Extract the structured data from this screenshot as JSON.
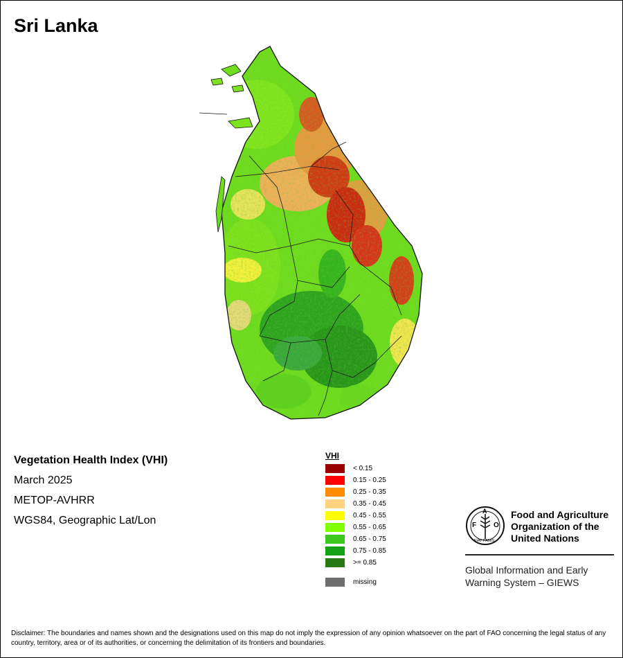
{
  "map": {
    "country": "Sri Lanka",
    "index_title": "Vegetation Health Index (VHI)",
    "period": "March 2025",
    "sensor": "METOP-AVHRR",
    "projection": "WGS84, Geographic Lat/Lon"
  },
  "legend": {
    "title": "VHI",
    "classes": [
      {
        "label": "< 0.15",
        "color": "#9b0000"
      },
      {
        "label": "0.15 - 0.25",
        "color": "#ff0000"
      },
      {
        "label": "0.25 - 0.35",
        "color": "#ff8c00"
      },
      {
        "label": "0.35 - 0.45",
        "color": "#ffd27f"
      },
      {
        "label": "0.45 - 0.55",
        "color": "#ffff00"
      },
      {
        "label": "0.55 - 0.65",
        "color": "#7fff00"
      },
      {
        "label": "0.65 - 0.75",
        "color": "#3cc81e"
      },
      {
        "label": "0.75 - 0.85",
        "color": "#14a014"
      },
      {
        "label": ">= 0.85",
        "color": "#287814"
      }
    ],
    "missing": {
      "label": "missing",
      "color": "#6e6e6e"
    }
  },
  "organization": {
    "name_line1": "Food and Agriculture",
    "name_line2": "Organization of the",
    "name_line3": "United Nations",
    "logo_text": "FAO",
    "motto": "FIAT PANIS",
    "system_line1": "Global Information and Early",
    "system_line2": "Warning System – GIEWS"
  },
  "disclaimer": "Disclaimer: The boundaries and names shown and the designations used on this map do not imply the expression of any opinion whatsoever on the part of FAO concerning the legal status of any country, territory, area or of its authorities, or concerning the delimitation of its frontiers and boundaries."
}
